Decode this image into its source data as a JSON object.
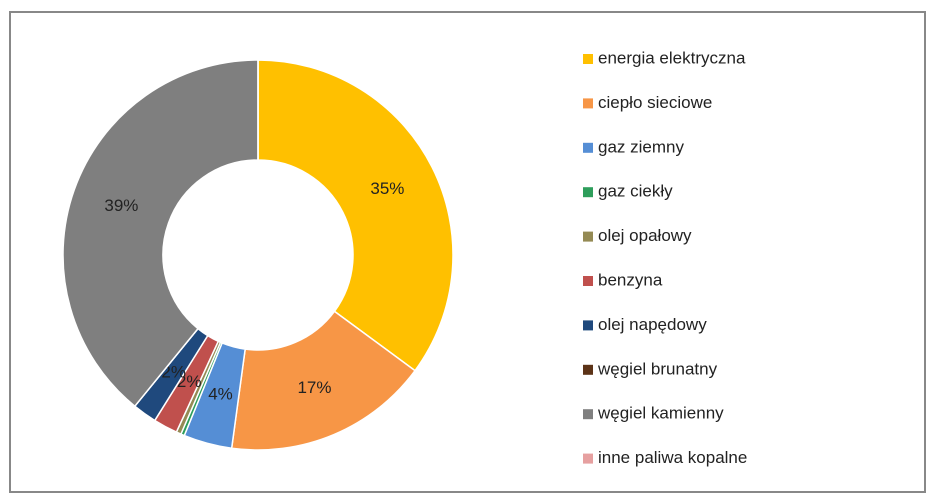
{
  "chart_data": {
    "type": "donut",
    "categories": [
      "energia elektryczna",
      "ciepło sieciowe",
      "gaz ziemny",
      "gaz ciekły",
      "olej opałowy",
      "benzyna",
      "olej napędowy",
      "węgiel brunatny",
      "węgiel kamienny",
      "inne paliwa kopalne"
    ],
    "values": [
      35,
      17,
      4,
      0.3,
      0.4,
      2,
      2,
      0,
      39,
      0
    ],
    "value_labels": [
      "35%",
      "17%",
      "4%",
      null,
      null,
      "2%",
      "2%",
      null,
      "39%",
      null
    ],
    "colors": [
      "#FFC000",
      "#F79646",
      "#558ED5",
      "#2E9E5B",
      "#948A54",
      "#C0504D",
      "#1F497D",
      "#5C3317",
      "#7F7F7F",
      "#E6A0A0"
    ],
    "legend": "right"
  }
}
